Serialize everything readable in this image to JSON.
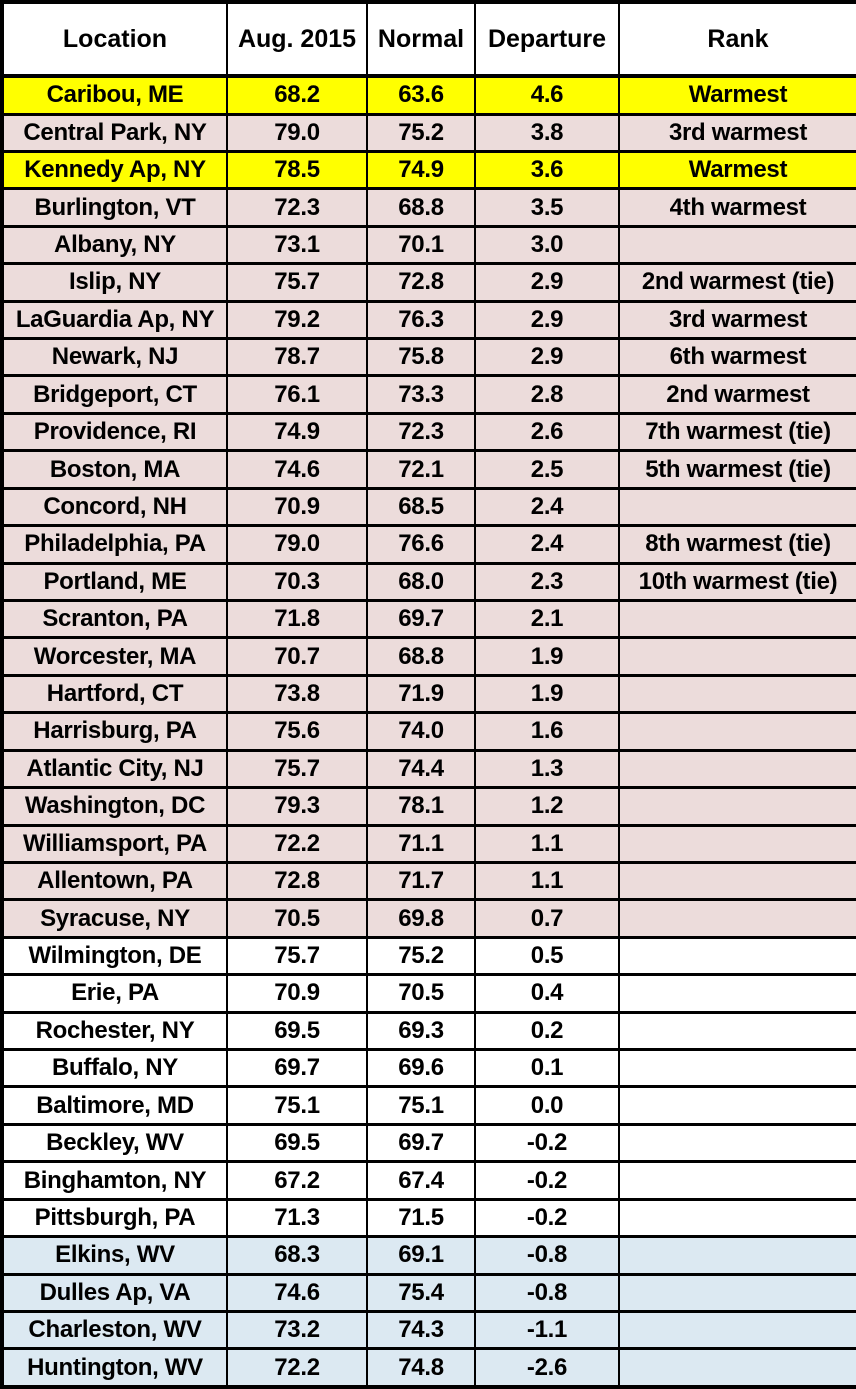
{
  "chart_data": {
    "type": "table",
    "title": "",
    "columns": [
      "Location",
      "Aug. 2015",
      "Normal",
      "Departure",
      "Rank"
    ],
    "rows": [
      {
        "location": "Caribou, ME",
        "aug2015": "68.2",
        "normal": "63.6",
        "departure": "4.6",
        "rank": "Warmest",
        "highlight": "record"
      },
      {
        "location": "Central Park, NY",
        "aug2015": "79.0",
        "normal": "75.2",
        "departure": "3.8",
        "rank": "3rd warmest",
        "highlight": "above"
      },
      {
        "location": "Kennedy Ap, NY",
        "aug2015": "78.5",
        "normal": "74.9",
        "departure": "3.6",
        "rank": "Warmest",
        "highlight": "record"
      },
      {
        "location": "Burlington, VT",
        "aug2015": "72.3",
        "normal": "68.8",
        "departure": "3.5",
        "rank": "4th warmest",
        "highlight": "above"
      },
      {
        "location": "Albany, NY",
        "aug2015": "73.1",
        "normal": "70.1",
        "departure": "3.0",
        "rank": "",
        "highlight": "above"
      },
      {
        "location": "Islip, NY",
        "aug2015": "75.7",
        "normal": "72.8",
        "departure": "2.9",
        "rank": "2nd warmest (tie)",
        "highlight": "above"
      },
      {
        "location": "LaGuardia Ap, NY",
        "aug2015": "79.2",
        "normal": "76.3",
        "departure": "2.9",
        "rank": "3rd warmest",
        "highlight": "above"
      },
      {
        "location": "Newark, NJ",
        "aug2015": "78.7",
        "normal": "75.8",
        "departure": "2.9",
        "rank": "6th warmest",
        "highlight": "above"
      },
      {
        "location": "Bridgeport, CT",
        "aug2015": "76.1",
        "normal": "73.3",
        "departure": "2.8",
        "rank": "2nd warmest",
        "highlight": "above"
      },
      {
        "location": "Providence, RI",
        "aug2015": "74.9",
        "normal": "72.3",
        "departure": "2.6",
        "rank": "7th warmest (tie)",
        "highlight": "above"
      },
      {
        "location": "Boston, MA",
        "aug2015": "74.6",
        "normal": "72.1",
        "departure": "2.5",
        "rank": "5th warmest (tie)",
        "highlight": "above"
      },
      {
        "location": "Concord, NH",
        "aug2015": "70.9",
        "normal": "68.5",
        "departure": "2.4",
        "rank": "",
        "highlight": "above"
      },
      {
        "location": "Philadelphia, PA",
        "aug2015": "79.0",
        "normal": "76.6",
        "departure": "2.4",
        "rank": "8th warmest (tie)",
        "highlight": "above"
      },
      {
        "location": "Portland, ME",
        "aug2015": "70.3",
        "normal": "68.0",
        "departure": "2.3",
        "rank": "10th warmest (tie)",
        "highlight": "above"
      },
      {
        "location": "Scranton, PA",
        "aug2015": "71.8",
        "normal": "69.7",
        "departure": "2.1",
        "rank": "",
        "highlight": "above"
      },
      {
        "location": "Worcester, MA",
        "aug2015": "70.7",
        "normal": "68.8",
        "departure": "1.9",
        "rank": "",
        "highlight": "above"
      },
      {
        "location": "Hartford, CT",
        "aug2015": "73.8",
        "normal": "71.9",
        "departure": "1.9",
        "rank": "",
        "highlight": "above"
      },
      {
        "location": "Harrisburg, PA",
        "aug2015": "75.6",
        "normal": "74.0",
        "departure": "1.6",
        "rank": "",
        "highlight": "above"
      },
      {
        "location": "Atlantic City, NJ",
        "aug2015": "75.7",
        "normal": "74.4",
        "departure": "1.3",
        "rank": "",
        "highlight": "above"
      },
      {
        "location": "Washington, DC",
        "aug2015": "79.3",
        "normal": "78.1",
        "departure": "1.2",
        "rank": "",
        "highlight": "above"
      },
      {
        "location": "Williamsport, PA",
        "aug2015": "72.2",
        "normal": "71.1",
        "departure": "1.1",
        "rank": "",
        "highlight": "above"
      },
      {
        "location": "Allentown, PA",
        "aug2015": "72.8",
        "normal": "71.7",
        "departure": "1.1",
        "rank": "",
        "highlight": "above"
      },
      {
        "location": "Syracuse, NY",
        "aug2015": "70.5",
        "normal": "69.8",
        "departure": "0.7",
        "rank": "",
        "highlight": "above"
      },
      {
        "location": "Wilmington, DE",
        "aug2015": "75.7",
        "normal": "75.2",
        "departure": "0.5",
        "rank": "",
        "highlight": "neutral"
      },
      {
        "location": "Erie, PA",
        "aug2015": "70.9",
        "normal": "70.5",
        "departure": "0.4",
        "rank": "",
        "highlight": "neutral"
      },
      {
        "location": "Rochester, NY",
        "aug2015": "69.5",
        "normal": "69.3",
        "departure": "0.2",
        "rank": "",
        "highlight": "neutral"
      },
      {
        "location": "Buffalo, NY",
        "aug2015": "69.7",
        "normal": "69.6",
        "departure": "0.1",
        "rank": "",
        "highlight": "neutral"
      },
      {
        "location": "Baltimore, MD",
        "aug2015": "75.1",
        "normal": "75.1",
        "departure": "0.0",
        "rank": "",
        "highlight": "neutral"
      },
      {
        "location": "Beckley, WV",
        "aug2015": "69.5",
        "normal": "69.7",
        "departure": "-0.2",
        "rank": "",
        "highlight": "neutral"
      },
      {
        "location": "Binghamton, NY",
        "aug2015": "67.2",
        "normal": "67.4",
        "departure": "-0.2",
        "rank": "",
        "highlight": "neutral"
      },
      {
        "location": "Pittsburgh, PA",
        "aug2015": "71.3",
        "normal": "71.5",
        "departure": "-0.2",
        "rank": "",
        "highlight": "neutral"
      },
      {
        "location": "Elkins, WV",
        "aug2015": "68.3",
        "normal": "69.1",
        "departure": "-0.8",
        "rank": "",
        "highlight": "below"
      },
      {
        "location": "Dulles Ap, VA",
        "aug2015": "74.6",
        "normal": "75.4",
        "departure": "-0.8",
        "rank": "",
        "highlight": "below"
      },
      {
        "location": "Charleston, WV",
        "aug2015": "73.2",
        "normal": "74.3",
        "departure": "-1.1",
        "rank": "",
        "highlight": "below"
      },
      {
        "location": "Huntington, WV",
        "aug2015": "72.2",
        "normal": "74.8",
        "departure": "-2.6",
        "rank": "",
        "highlight": "below"
      }
    ]
  },
  "colors": {
    "record": "#FFFF00",
    "above": "#ECDCDB",
    "neutral": "#FFFFFF",
    "below": "#DCE9F2",
    "border": "#000000"
  }
}
